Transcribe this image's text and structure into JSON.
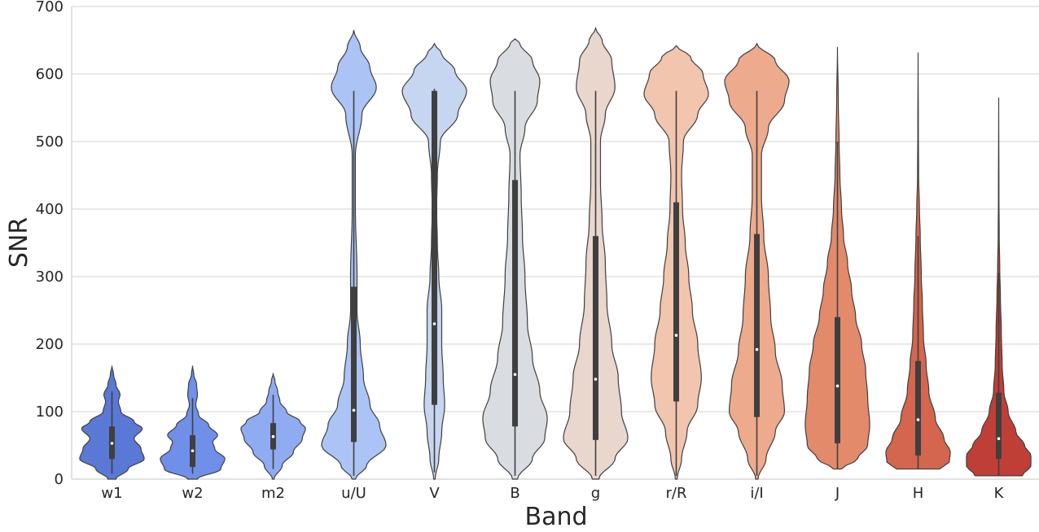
{
  "chart_data": {
    "type": "violin",
    "xlabel": "Band",
    "ylabel": "SNR",
    "ylim": [
      0,
      700
    ],
    "yticks": [
      0,
      100,
      200,
      300,
      400,
      500,
      600,
      700
    ],
    "grid": "horizontal",
    "categories": [
      "w1",
      "w2",
      "m2",
      "u/U",
      "V",
      "B",
      "g",
      "r/R",
      "i/I",
      "J",
      "H",
      "K"
    ],
    "colors": [
      "#5a78d6",
      "#6f8fe8",
      "#8fabf2",
      "#abc4f5",
      "#c6d6f0",
      "#d9dde2",
      "#e9d6cd",
      "#f2c5ae",
      "#eeaa8c",
      "#e38a6b",
      "#d4654e",
      "#bf3f36"
    ],
    "violins": [
      {
        "band": "w1",
        "min": 0,
        "max": 168,
        "q1": 30,
        "median": 53,
        "q3": 78,
        "whisker_low": 8,
        "whisker_high": 130,
        "shape": [
          [
            0,
            0.1
          ],
          [
            15,
            0.4
          ],
          [
            30,
            0.8
          ],
          [
            45,
            0.72
          ],
          [
            60,
            0.55
          ],
          [
            75,
            0.75
          ],
          [
            85,
            0.55
          ],
          [
            100,
            0.22
          ],
          [
            115,
            0.16
          ],
          [
            125,
            0.2
          ],
          [
            140,
            0.1
          ],
          [
            155,
            0.04
          ],
          [
            168,
            0
          ]
        ]
      },
      {
        "band": "w2",
        "min": 0,
        "max": 168,
        "q1": 18,
        "median": 42,
        "q3": 65,
        "whisker_low": 8,
        "whisker_high": 120,
        "shape": [
          [
            0,
            0.12
          ],
          [
            15,
            0.7
          ],
          [
            30,
            0.8
          ],
          [
            45,
            0.55
          ],
          [
            55,
            0.5
          ],
          [
            65,
            0.62
          ],
          [
            80,
            0.4
          ],
          [
            95,
            0.15
          ],
          [
            110,
            0.08
          ],
          [
            125,
            0.12
          ],
          [
            140,
            0.1
          ],
          [
            155,
            0.03
          ],
          [
            168,
            0
          ]
        ]
      },
      {
        "band": "m2",
        "min": 0,
        "max": 157,
        "q1": 44,
        "median": 63,
        "q3": 83,
        "whisker_low": 15,
        "whisker_high": 125,
        "shape": [
          [
            0,
            0.02
          ],
          [
            20,
            0.2
          ],
          [
            40,
            0.45
          ],
          [
            60,
            0.65
          ],
          [
            75,
            0.72
          ],
          [
            85,
            0.6
          ],
          [
            100,
            0.3
          ],
          [
            115,
            0.15
          ],
          [
            130,
            0.1
          ],
          [
            145,
            0.04
          ],
          [
            157,
            0
          ]
        ]
      },
      {
        "band": "u/U",
        "min": 0,
        "max": 665,
        "q1": 55,
        "median": 102,
        "q3": 285,
        "whisker_low": 5,
        "whisker_high": 575,
        "shape": [
          [
            0,
            0.01
          ],
          [
            20,
            0.08
          ],
          [
            50,
            0.2
          ],
          [
            80,
            0.16
          ],
          [
            110,
            0.1
          ],
          [
            150,
            0.06
          ],
          [
            200,
            0.04
          ],
          [
            250,
            0.02
          ],
          [
            300,
            0.02
          ],
          [
            400,
            0.01
          ],
          [
            480,
            0.01
          ],
          [
            540,
            0.05
          ],
          [
            580,
            0.14
          ],
          [
            610,
            0.1
          ],
          [
            640,
            0.04
          ],
          [
            665,
            0
          ]
        ]
      },
      {
        "band": "V",
        "min": 0,
        "max": 645,
        "q1": 110,
        "median": 230,
        "q3": 575,
        "whisker_low": 10,
        "whisker_high": 578,
        "shape": [
          [
            0,
            0.005
          ],
          [
            30,
            0.03
          ],
          [
            70,
            0.05
          ],
          [
            110,
            0.07
          ],
          [
            150,
            0.06
          ],
          [
            200,
            0.05
          ],
          [
            250,
            0.05
          ],
          [
            300,
            0.03
          ],
          [
            350,
            0.02
          ],
          [
            400,
            0.015
          ],
          [
            450,
            0.02
          ],
          [
            500,
            0.04
          ],
          [
            540,
            0.16
          ],
          [
            575,
            0.22
          ],
          [
            605,
            0.14
          ],
          [
            630,
            0.05
          ],
          [
            645,
            0
          ]
        ]
      },
      {
        "band": "B",
        "min": 0,
        "max": 652,
        "q1": 78,
        "median": 155,
        "q3": 443,
        "whisker_low": 5,
        "whisker_high": 575,
        "shape": [
          [
            0,
            0.01
          ],
          [
            30,
            0.07
          ],
          [
            60,
            0.12
          ],
          [
            90,
            0.13
          ],
          [
            130,
            0.1
          ],
          [
            180,
            0.07
          ],
          [
            230,
            0.05
          ],
          [
            300,
            0.04
          ],
          [
            360,
            0.03
          ],
          [
            420,
            0.025
          ],
          [
            480,
            0.02
          ],
          [
            520,
            0.04
          ],
          [
            560,
            0.09
          ],
          [
            590,
            0.1
          ],
          [
            620,
            0.07
          ],
          [
            645,
            0.02
          ],
          [
            652,
            0
          ]
        ]
      },
      {
        "band": "g",
        "min": 0,
        "max": 668,
        "q1": 58,
        "median": 148,
        "q3": 360,
        "whisker_low": 5,
        "whisker_high": 575,
        "shape": [
          [
            0,
            0.01
          ],
          [
            30,
            0.06
          ],
          [
            60,
            0.1
          ],
          [
            100,
            0.08
          ],
          [
            150,
            0.07
          ],
          [
            200,
            0.05
          ],
          [
            260,
            0.035
          ],
          [
            320,
            0.03
          ],
          [
            380,
            0.02
          ],
          [
            440,
            0.015
          ],
          [
            500,
            0.015
          ],
          [
            540,
            0.03
          ],
          [
            580,
            0.06
          ],
          [
            620,
            0.05
          ],
          [
            650,
            0.02
          ],
          [
            668,
            0
          ]
        ]
      },
      {
        "band": "r/R",
        "min": 0,
        "max": 642,
        "q1": 115,
        "median": 213,
        "q3": 410,
        "whisker_low": 5,
        "whisker_high": 575,
        "shape": [
          [
            0,
            0.005
          ],
          [
            30,
            0.03
          ],
          [
            70,
            0.06
          ],
          [
            110,
            0.12
          ],
          [
            150,
            0.14
          ],
          [
            200,
            0.12
          ],
          [
            250,
            0.09
          ],
          [
            300,
            0.07
          ],
          [
            350,
            0.05
          ],
          [
            400,
            0.035
          ],
          [
            450,
            0.03
          ],
          [
            500,
            0.04
          ],
          [
            540,
            0.12
          ],
          [
            570,
            0.18
          ],
          [
            600,
            0.15
          ],
          [
            625,
            0.08
          ],
          [
            642,
            0
          ]
        ]
      },
      {
        "band": "i/I",
        "min": 0,
        "max": 645,
        "q1": 92,
        "median": 192,
        "q3": 363,
        "whisker_low": 5,
        "whisker_high": 575,
        "shape": [
          [
            0,
            0.005
          ],
          [
            30,
            0.04
          ],
          [
            70,
            0.08
          ],
          [
            100,
            0.12
          ],
          [
            140,
            0.11
          ],
          [
            190,
            0.08
          ],
          [
            240,
            0.06
          ],
          [
            300,
            0.05
          ],
          [
            360,
            0.03
          ],
          [
            420,
            0.02
          ],
          [
            480,
            0.02
          ],
          [
            520,
            0.05
          ],
          [
            560,
            0.12
          ],
          [
            590,
            0.14
          ],
          [
            620,
            0.08
          ],
          [
            645,
            0
          ]
        ]
      },
      {
        "band": "J",
        "min": 15,
        "max": 640,
        "q1": 53,
        "median": 138,
        "q3": 240,
        "whisker_low": 15,
        "whisker_high": 500,
        "shape": [
          [
            15,
            0.02
          ],
          [
            30,
            0.1
          ],
          [
            50,
            0.15
          ],
          [
            80,
            0.16
          ],
          [
            120,
            0.15
          ],
          [
            160,
            0.14
          ],
          [
            200,
            0.12
          ],
          [
            240,
            0.09
          ],
          [
            280,
            0.07
          ],
          [
            320,
            0.05
          ],
          [
            360,
            0.03
          ],
          [
            400,
            0.02
          ],
          [
            450,
            0.012
          ],
          [
            500,
            0.008
          ],
          [
            560,
            0.004
          ],
          [
            640,
            0
          ]
        ]
      },
      {
        "band": "H",
        "min": 15,
        "max": 632,
        "q1": 35,
        "median": 88,
        "q3": 175,
        "whisker_low": 15,
        "whisker_high": 360,
        "shape": [
          [
            15,
            0.4
          ],
          [
            25,
            0.58
          ],
          [
            40,
            0.6
          ],
          [
            60,
            0.48
          ],
          [
            90,
            0.32
          ],
          [
            130,
            0.2
          ],
          [
            170,
            0.15
          ],
          [
            210,
            0.1
          ],
          [
            260,
            0.08
          ],
          [
            300,
            0.06
          ],
          [
            360,
            0.04
          ],
          [
            400,
            0.025
          ],
          [
            450,
            0.01
          ],
          [
            520,
            0.005
          ],
          [
            632,
            0
          ]
        ]
      },
      {
        "band": "K",
        "min": 5,
        "max": 565,
        "q1": 30,
        "median": 60,
        "q3": 128,
        "whisker_low": 5,
        "whisker_high": 305,
        "shape": [
          [
            5,
            0.55
          ],
          [
            20,
            0.75
          ],
          [
            35,
            0.75
          ],
          [
            50,
            0.6
          ],
          [
            70,
            0.4
          ],
          [
            100,
            0.22
          ],
          [
            130,
            0.12
          ],
          [
            170,
            0.08
          ],
          [
            220,
            0.06
          ],
          [
            270,
            0.04
          ],
          [
            310,
            0.025
          ],
          [
            360,
            0.012
          ],
          [
            420,
            0.006
          ],
          [
            565,
            0
          ]
        ]
      }
    ]
  }
}
